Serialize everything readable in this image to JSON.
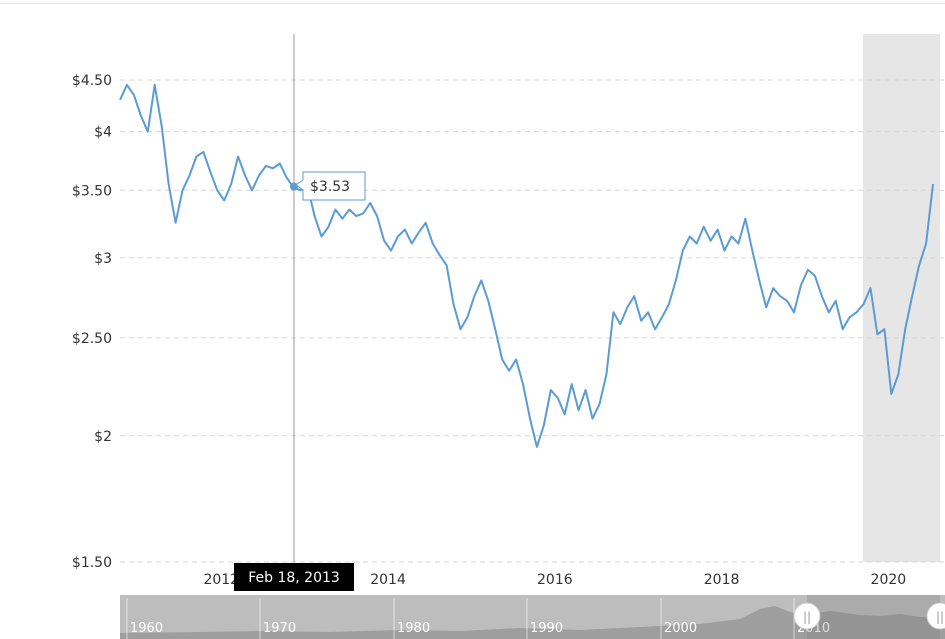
{
  "chart_data": {
    "type": "line",
    "title": "",
    "xlabel": "",
    "ylabel": "",
    "y_scale": "log",
    "ylim": [
      1.5,
      4.9
    ],
    "y_ticks": [
      1.5,
      2,
      2.5,
      3,
      3.5,
      4,
      4.5
    ],
    "y_tick_labels": [
      "$1.50",
      "$2",
      "$2.50",
      "$3",
      "$3.50",
      "$4",
      "$4.50"
    ],
    "x_tick_labels": [
      "2012",
      "2014",
      "2016",
      "2018",
      "2020"
    ],
    "x_tick_values": [
      "2012-01",
      "2014-01",
      "2016-01",
      "2018-01",
      "2020-01"
    ],
    "grid": "horizontal dashed",
    "line_color": "#5b9bd5",
    "highlight": {
      "from": "2019-11",
      "to": "2020-07",
      "color": "#e6e6e6"
    },
    "crosshair": {
      "date": "Feb 18, 2013",
      "value": 3.53,
      "value_label": "$3.53"
    },
    "series": [
      {
        "points": [
          [
            "2010-11",
            4.3
          ],
          [
            "2010-12",
            4.45
          ],
          [
            "2011-01",
            4.35
          ],
          [
            "2011-02",
            4.15
          ],
          [
            "2011-03",
            4.0
          ],
          [
            "2011-04",
            4.45
          ],
          [
            "2011-05",
            4.05
          ],
          [
            "2011-06",
            3.55
          ],
          [
            "2011-07",
            3.25
          ],
          [
            "2011-08",
            3.5
          ],
          [
            "2011-09",
            3.62
          ],
          [
            "2011-10",
            3.78
          ],
          [
            "2011-11",
            3.82
          ],
          [
            "2011-12",
            3.65
          ],
          [
            "2012-01",
            3.5
          ],
          [
            "2012-02",
            3.42
          ],
          [
            "2012-03",
            3.55
          ],
          [
            "2012-04",
            3.78
          ],
          [
            "2012-05",
            3.62
          ],
          [
            "2012-06",
            3.5
          ],
          [
            "2012-07",
            3.62
          ],
          [
            "2012-08",
            3.7
          ],
          [
            "2012-09",
            3.68
          ],
          [
            "2012-10",
            3.72
          ],
          [
            "2012-11",
            3.6
          ],
          [
            "2012-12",
            3.52
          ],
          [
            "2013-01",
            3.5
          ],
          [
            "2013-02",
            3.53
          ],
          [
            "2013-03",
            3.3
          ],
          [
            "2013-04",
            3.15
          ],
          [
            "2013-05",
            3.22
          ],
          [
            "2013-06",
            3.35
          ],
          [
            "2013-07",
            3.28
          ],
          [
            "2013-08",
            3.35
          ],
          [
            "2013-09",
            3.3
          ],
          [
            "2013-10",
            3.32
          ],
          [
            "2013-11",
            3.4
          ],
          [
            "2013-12",
            3.3
          ],
          [
            "2014-01",
            3.12
          ],
          [
            "2014-02",
            3.05
          ],
          [
            "2014-03",
            3.15
          ],
          [
            "2014-04",
            3.2
          ],
          [
            "2014-05",
            3.1
          ],
          [
            "2014-06",
            3.18
          ],
          [
            "2014-07",
            3.25
          ],
          [
            "2014-08",
            3.1
          ],
          [
            "2014-09",
            3.02
          ],
          [
            "2014-10",
            2.95
          ],
          [
            "2014-11",
            2.7
          ],
          [
            "2014-12",
            2.55
          ],
          [
            "2015-01",
            2.62
          ],
          [
            "2015-02",
            2.75
          ],
          [
            "2015-03",
            2.85
          ],
          [
            "2015-04",
            2.72
          ],
          [
            "2015-05",
            2.55
          ],
          [
            "2015-06",
            2.38
          ],
          [
            "2015-07",
            2.32
          ],
          [
            "2015-08",
            2.38
          ],
          [
            "2015-09",
            2.25
          ],
          [
            "2015-10",
            2.08
          ],
          [
            "2015-11",
            1.95
          ],
          [
            "2015-12",
            2.05
          ],
          [
            "2016-01",
            2.22
          ],
          [
            "2016-02",
            2.18
          ],
          [
            "2016-03",
            2.1
          ],
          [
            "2016-04",
            2.25
          ],
          [
            "2016-05",
            2.12
          ],
          [
            "2016-06",
            2.22
          ],
          [
            "2016-07",
            2.08
          ],
          [
            "2016-08",
            2.15
          ],
          [
            "2016-09",
            2.3
          ],
          [
            "2016-10",
            2.65
          ],
          [
            "2016-11",
            2.58
          ],
          [
            "2016-12",
            2.68
          ],
          [
            "2017-01",
            2.75
          ],
          [
            "2017-02",
            2.6
          ],
          [
            "2017-03",
            2.65
          ],
          [
            "2017-04",
            2.55
          ],
          [
            "2017-05",
            2.62
          ],
          [
            "2017-06",
            2.7
          ],
          [
            "2017-07",
            2.85
          ],
          [
            "2017-08",
            3.05
          ],
          [
            "2017-09",
            3.15
          ],
          [
            "2017-10",
            3.1
          ],
          [
            "2017-11",
            3.22
          ],
          [
            "2017-12",
            3.12
          ],
          [
            "2018-01",
            3.2
          ],
          [
            "2018-02",
            3.05
          ],
          [
            "2018-03",
            3.15
          ],
          [
            "2018-04",
            3.1
          ],
          [
            "2018-05",
            3.28
          ],
          [
            "2018-06",
            3.05
          ],
          [
            "2018-07",
            2.85
          ],
          [
            "2018-08",
            2.68
          ],
          [
            "2018-09",
            2.8
          ],
          [
            "2018-10",
            2.75
          ],
          [
            "2018-11",
            2.72
          ],
          [
            "2018-12",
            2.65
          ],
          [
            "2019-01",
            2.82
          ],
          [
            "2019-02",
            2.92
          ],
          [
            "2019-03",
            2.88
          ],
          [
            "2019-04",
            2.75
          ],
          [
            "2019-05",
            2.65
          ],
          [
            "2019-06",
            2.72
          ],
          [
            "2019-07",
            2.55
          ],
          [
            "2019-08",
            2.62
          ],
          [
            "2019-09",
            2.65
          ],
          [
            "2019-10",
            2.7
          ],
          [
            "2019-11",
            2.8
          ],
          [
            "2019-12",
            2.52
          ],
          [
            "2020-01",
            2.55
          ],
          [
            "2020-02",
            2.2
          ],
          [
            "2020-03",
            2.3
          ],
          [
            "2020-04",
            2.55
          ],
          [
            "2020-05",
            2.75
          ],
          [
            "2020-06",
            2.95
          ],
          [
            "2020-07",
            3.1
          ],
          [
            "2020-08",
            3.55
          ]
        ]
      }
    ]
  },
  "navigator": {
    "labels": [
      "1960",
      "1970",
      "1980",
      "1990",
      "2000",
      "2010"
    ],
    "handle_left_glyph": "||",
    "handle_right_glyph": "||"
  },
  "colors": {
    "line": "#5b9bd5",
    "grid": "#d6d6d6",
    "highlight": "#e6e6e6",
    "date_box": "#000000"
  }
}
